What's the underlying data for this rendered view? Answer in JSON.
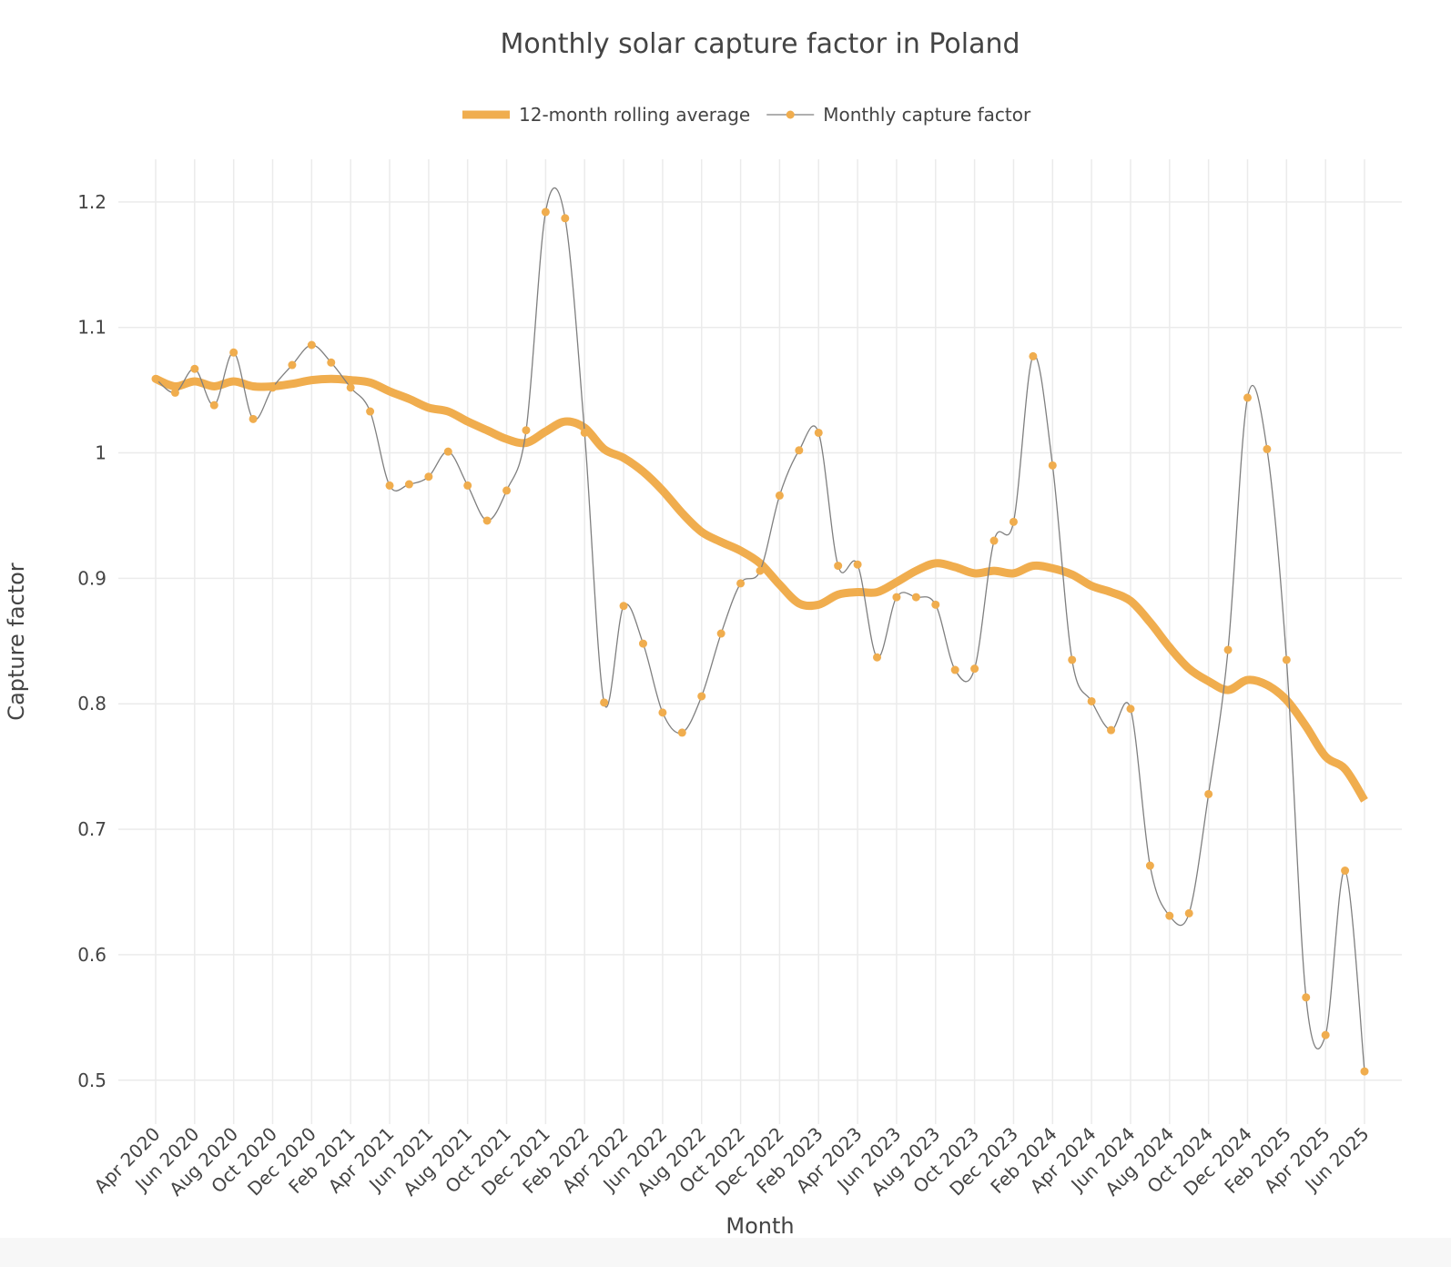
{
  "chart_data": {
    "type": "line",
    "title": "Monthly solar capture factor in Poland",
    "x_label": "Month",
    "y_label": "Capture factor",
    "categories": [
      "Apr 2020",
      null,
      "Jun 2020",
      null,
      "Aug 2020",
      null,
      "Oct 2020",
      null,
      "Dec 2020",
      null,
      "Feb 2021",
      null,
      "Apr 2021",
      null,
      "Jun 2021",
      null,
      "Aug 2021",
      null,
      "Oct 2021",
      null,
      "Dec 2021",
      null,
      "Feb 2022",
      null,
      "Apr 2022",
      null,
      "Jun 2022",
      null,
      "Aug 2022",
      null,
      "Oct 2022",
      null,
      "Dec 2022",
      null,
      "Feb 2023",
      null,
      "Apr 2023",
      null,
      "Jun 2023",
      null,
      "Aug 2023",
      null,
      "Oct 2023",
      null,
      "Dec 2023",
      null,
      "Feb 2024",
      null,
      "Apr 2024",
      null,
      "Jun 2024",
      null,
      "Aug 2024",
      null,
      "Oct 2024",
      null,
      "Dec 2024",
      null,
      "Feb 2025",
      null,
      "Apr 2025",
      null,
      "Jun 2025"
    ],
    "series": [
      {
        "name": "12-month rolling average",
        "color": "#f0ad4e",
        "line_width": 9,
        "markers": false,
        "values": [
          1.059,
          1.053,
          1.057,
          1.053,
          1.057,
          1.053,
          1.053,
          1.055,
          1.058,
          1.059,
          1.058,
          1.056,
          1.049,
          1.043,
          1.036,
          1.033,
          1.025,
          1.018,
          1.011,
          1.008,
          1.017,
          1.025,
          1.02,
          1.003,
          0.996,
          0.985,
          0.97,
          0.952,
          0.937,
          0.929,
          0.922,
          0.912,
          0.895,
          0.88,
          0.879,
          0.887,
          0.889,
          0.889,
          0.897,
          0.906,
          0.912,
          0.909,
          0.904,
          0.906,
          0.904,
          0.91,
          0.908,
          0.903,
          0.894,
          0.889,
          0.882,
          0.865,
          0.845,
          0.828,
          0.818,
          0.811,
          0.819,
          0.815,
          0.803,
          0.782,
          0.758,
          0.748,
          0.723
        ]
      },
      {
        "name": "Monthly capture factor",
        "color": "#f0ad4e",
        "line_color": "#7f7f7f",
        "line_width": 1.3,
        "markers": true,
        "values": [
          1.059,
          1.048,
          1.067,
          1.038,
          1.08,
          1.027,
          1.052,
          1.07,
          1.086,
          1.072,
          1.052,
          1.033,
          0.974,
          0.975,
          0.981,
          1.001,
          0.974,
          0.946,
          0.97,
          1.018,
          1.192,
          1.187,
          1.016,
          0.801,
          0.878,
          0.848,
          0.793,
          0.777,
          0.806,
          0.856,
          0.896,
          0.906,
          0.966,
          1.002,
          1.016,
          0.91,
          0.911,
          0.837,
          0.885,
          0.885,
          0.879,
          0.827,
          0.828,
          0.93,
          0.945,
          1.077,
          0.99,
          0.835,
          0.802,
          0.779,
          0.796,
          0.671,
          0.631,
          0.633,
          0.728,
          0.843,
          1.044,
          1.003,
          0.835,
          0.566,
          0.536,
          0.667,
          0.507
        ]
      }
    ],
    "ylim": [
      0.465,
      1.234
    ],
    "yticks": [
      0.5,
      0.6,
      0.7,
      0.8,
      0.9,
      1,
      1.1,
      1.2
    ],
    "grid": true,
    "smooth": true,
    "legend": "top"
  }
}
